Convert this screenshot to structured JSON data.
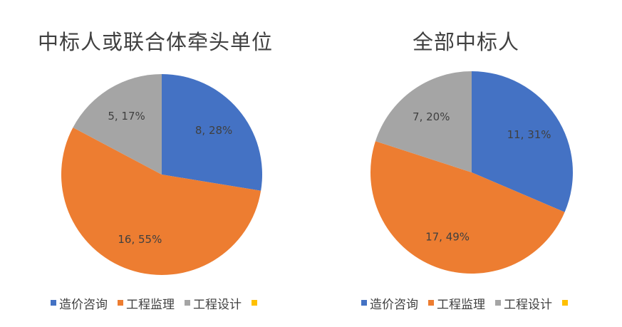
{
  "chart_data": [
    {
      "type": "pie",
      "title": "中标人或联合体牵头单位",
      "categories": [
        "造价咨询",
        "工程监理",
        "工程设计",
        ""
      ],
      "values": [
        8,
        16,
        5,
        0
      ],
      "labels": [
        "8, 28%",
        "16, 55%",
        "5, 17%",
        ""
      ],
      "colors": [
        "#4472C4",
        "#ED7D31",
        "#A5A5A5",
        "#FFC000"
      ],
      "legend": "bottom"
    },
    {
      "type": "pie",
      "title": "全部中标人",
      "categories": [
        "造价咨询",
        "工程监理",
        "工程设计",
        ""
      ],
      "values": [
        11,
        17,
        7,
        0
      ],
      "labels": [
        "11, 31%",
        "17, 49%",
        "7, 20%",
        ""
      ],
      "colors": [
        "#4472C4",
        "#ED7D31",
        "#A5A5A5",
        "#FFC000"
      ],
      "legend": "bottom"
    }
  ]
}
